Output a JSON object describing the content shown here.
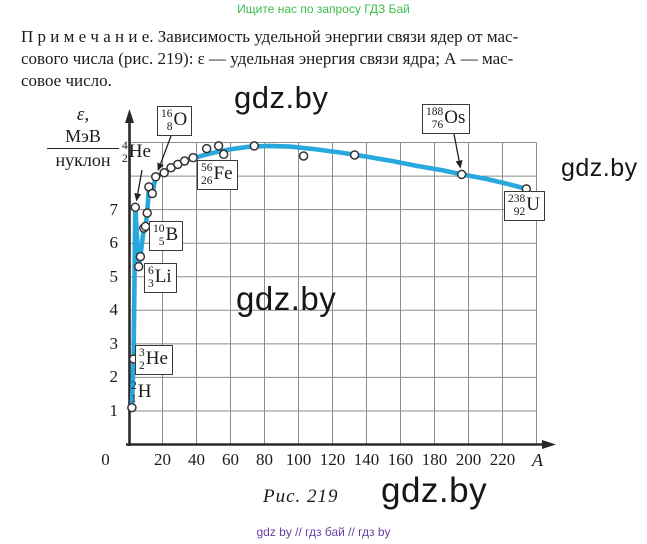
{
  "banner": {
    "text": "Ищите нас по запросу ГДЗ Бай",
    "color": "#3bbd49"
  },
  "note": {
    "lines": [
      "П р и м е ч а н и е. Зависимость удельной энергии связи ядер от мас-",
      "сового числа (рис. 219): ε — удельная энергия связи ядра; А — мас-",
      "совое число."
    ]
  },
  "watermarks": {
    "w1": "gdz.by",
    "w2": "gdz.by",
    "w3": "gdz.by",
    "w4": "gdz.by"
  },
  "caption": "Рис. 219",
  "footer": {
    "text": "gdz by  //  гдз бай  //  гдз by",
    "color": "#6b3fa3"
  },
  "chart_data": {
    "type": "line",
    "title": "Зависимость удельной энергии связи ядер от массового числа",
    "xlabel": "A",
    "ylabel": "ε, МэВ/нуклон",
    "ylabel_parts": {
      "epsilon": "ε,",
      "numerator": "МэВ",
      "denominator": "нуклон"
    },
    "xlim": [
      0,
      240
    ],
    "ylim": [
      0,
      9
    ],
    "grid": true,
    "legend": "none",
    "x_ticks": [
      0,
      20,
      40,
      60,
      80,
      100,
      120,
      140,
      160,
      180,
      200,
      220
    ],
    "y_ticks": [
      7,
      6,
      5,
      4,
      3,
      2,
      1
    ],
    "curve_color": "#29a8dd",
    "curve": [
      [
        2,
        1.1
      ],
      [
        3,
        2.55
      ],
      [
        4,
        7.07
      ],
      [
        6,
        5.3
      ],
      [
        7,
        5.6
      ],
      [
        9,
        6.45
      ],
      [
        10,
        6.5
      ],
      [
        11,
        6.9
      ],
      [
        12,
        7.68
      ],
      [
        14,
        7.48
      ],
      [
        16,
        7.98
      ],
      [
        20,
        8.08
      ],
      [
        25,
        8.25
      ],
      [
        30,
        8.38
      ],
      [
        36,
        8.5
      ],
      [
        44,
        8.62
      ],
      [
        52,
        8.72
      ],
      [
        60,
        8.8
      ],
      [
        70,
        8.87
      ],
      [
        82,
        8.9
      ],
      [
        95,
        8.88
      ],
      [
        110,
        8.8
      ],
      [
        125,
        8.7
      ],
      [
        140,
        8.58
      ],
      [
        155,
        8.45
      ],
      [
        170,
        8.3
      ],
      [
        185,
        8.17
      ],
      [
        196,
        8.05
      ],
      [
        210,
        7.92
      ],
      [
        222,
        7.78
      ],
      [
        234,
        7.62
      ]
    ],
    "points": [
      {
        "isotope": "H-2",
        "A": 2,
        "e": 1.1
      },
      {
        "isotope": "He-3",
        "A": 3,
        "e": 2.55
      },
      {
        "isotope": "He-4",
        "A": 4,
        "e": 7.07
      },
      {
        "isotope": "Li-6",
        "A": 6,
        "e": 5.3
      },
      {
        "isotope": "Li-7",
        "A": 7,
        "e": 5.6
      },
      {
        "isotope": "Be-9",
        "A": 9,
        "e": 6.45
      },
      {
        "isotope": "B-10",
        "A": 10,
        "e": 6.5
      },
      {
        "isotope": "B-11",
        "A": 11,
        "e": 6.9
      },
      {
        "isotope": "C-12",
        "A": 12,
        "e": 7.68
      },
      {
        "isotope": "N-14",
        "A": 14,
        "e": 7.48
      },
      {
        "isotope": "O-16",
        "A": 16,
        "e": 7.98
      },
      {
        "A": 21,
        "e": 8.1
      },
      {
        "A": 25,
        "e": 8.25
      },
      {
        "A": 29,
        "e": 8.35
      },
      {
        "A": 33,
        "e": 8.45
      },
      {
        "A": 38,
        "e": 8.55
      },
      {
        "A": 46,
        "e": 8.82
      },
      {
        "A": 53,
        "e": 8.9
      },
      {
        "isotope": "Fe-56",
        "A": 56,
        "e": 8.65
      },
      {
        "A": 74,
        "e": 8.9
      },
      {
        "A": 103,
        "e": 8.6
      },
      {
        "A": 133,
        "e": 8.63
      },
      {
        "isotope": "Os-188",
        "A": 196,
        "e": 8.05
      },
      {
        "isotope": "U-238",
        "A": 234,
        "e": 7.62
      }
    ],
    "callouts": [
      {
        "target": "He-4",
        "from": [
          142,
          170
        ]
      },
      {
        "target": "O-16",
        "from": [
          171,
          136
        ]
      },
      {
        "target": "Fe-56",
        "from": [
          229,
          164
        ]
      },
      {
        "target": "Os-188",
        "from": [
          454,
          134
        ]
      }
    ],
    "isotope_labels": [
      {
        "id": "he4",
        "mass": "4",
        "charge": "2",
        "symbol": "He",
        "boxed": false
      },
      {
        "id": "o16",
        "mass": "16",
        "charge": "8",
        "symbol": "O",
        "boxed": true
      },
      {
        "id": "fe56",
        "mass": "56",
        "charge": "26",
        "symbol": "Fe",
        "boxed": true
      },
      {
        "id": "b10",
        "mass": "10",
        "charge": "5",
        "symbol": "B",
        "boxed": true
      },
      {
        "id": "li6",
        "mass": "6",
        "charge": "3",
        "symbol": "Li",
        "boxed": true
      },
      {
        "id": "he3",
        "mass": "3",
        "charge": "2",
        "symbol": "He",
        "boxed": true
      },
      {
        "id": "h2",
        "mass": "2",
        "charge": "1",
        "symbol": "H",
        "boxed": false
      },
      {
        "id": "os188",
        "mass": "188",
        "charge": "76",
        "symbol": "Os",
        "boxed": true
      },
      {
        "id": "u238",
        "mass": "238",
        "charge": "92",
        "symbol": "U",
        "boxed": true
      }
    ]
  }
}
